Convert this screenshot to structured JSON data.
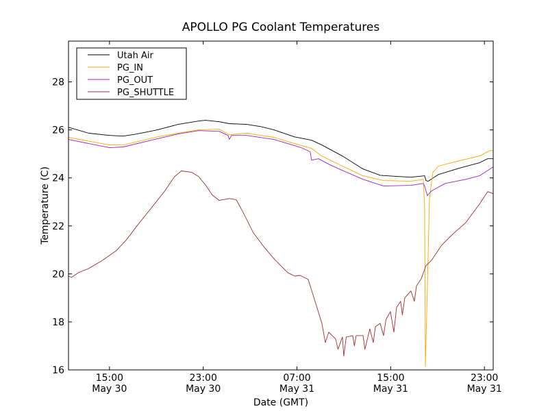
{
  "chart_data": {
    "type": "line",
    "title": "APOLLO PG Coolant Temperatures",
    "xlabel": "Date (GMT)",
    "ylabel": "Temperature (C)",
    "x_units": "hours since May 30 00:00 GMT",
    "xlim": [
      11.5,
      47.75
    ],
    "ylim": [
      16,
      29.7
    ],
    "yticks": [
      16,
      18,
      20,
      22,
      24,
      26,
      28
    ],
    "xticks": [
      {
        "x": 15,
        "time": "15:00",
        "date": "May 30"
      },
      {
        "x": 23,
        "time": "23:00",
        "date": "May 30"
      },
      {
        "x": 31,
        "time": "07:00",
        "date": "May 31"
      },
      {
        "x": 39,
        "time": "15:00",
        "date": "May 31"
      },
      {
        "x": 47,
        "time": "23:00",
        "date": "May 31"
      }
    ],
    "grid": false,
    "legend_position": "top-left",
    "series": [
      {
        "name": "Utah Air",
        "color": "#000000",
        "points": [
          [
            11.49,
            26.11
          ],
          [
            13.25,
            25.86
          ],
          [
            15,
            25.77
          ],
          [
            16.17,
            25.74
          ],
          [
            17.34,
            25.83
          ],
          [
            19.09,
            26.0
          ],
          [
            20.85,
            26.23
          ],
          [
            22.6,
            26.37
          ],
          [
            23.19,
            26.4
          ],
          [
            24.36,
            26.34
          ],
          [
            25.23,
            26.26
          ],
          [
            26.7,
            26.23
          ],
          [
            27.87,
            26.14
          ],
          [
            29.04,
            26.0
          ],
          [
            30.79,
            25.71
          ],
          [
            32.25,
            25.57
          ],
          [
            33.13,
            25.37
          ],
          [
            34.88,
            24.91
          ],
          [
            36.64,
            24.37
          ],
          [
            38.1,
            24.11
          ],
          [
            39.56,
            24.06
          ],
          [
            40.73,
            24.03
          ],
          [
            41.9,
            24.09
          ],
          [
            42.01,
            23.89
          ],
          [
            42.19,
            23.86
          ],
          [
            43.07,
            24.14
          ],
          [
            44.82,
            24.4
          ],
          [
            46.58,
            24.63
          ],
          [
            47.28,
            24.8
          ],
          [
            47.75,
            24.8
          ]
        ]
      },
      {
        "name": "PG_IN",
        "color": "#ffa500",
        "points": [
          [
            11.49,
            25.69
          ],
          [
            15,
            25.37
          ],
          [
            16.17,
            25.37
          ],
          [
            19.09,
            25.71
          ],
          [
            20.85,
            25.86
          ],
          [
            22.6,
            26.0
          ],
          [
            24.36,
            26.03
          ],
          [
            25.23,
            25.8
          ],
          [
            26.7,
            25.86
          ],
          [
            29.04,
            25.69
          ],
          [
            30.79,
            25.43
          ],
          [
            32.25,
            25.23
          ],
          [
            33.13,
            24.91
          ],
          [
            34.88,
            24.49
          ],
          [
            36.64,
            24.09
          ],
          [
            38.39,
            23.89
          ],
          [
            40.73,
            23.86
          ],
          [
            41.78,
            23.94
          ],
          [
            41.9,
            22.86
          ],
          [
            41.96,
            16.14
          ],
          [
            42.13,
            19.43
          ],
          [
            42.31,
            23.14
          ],
          [
            42.6,
            24.23
          ],
          [
            43.07,
            24.49
          ],
          [
            44.82,
            24.71
          ],
          [
            46.58,
            24.91
          ],
          [
            47.46,
            25.14
          ],
          [
            47.75,
            25.14
          ]
        ]
      },
      {
        "name": "PG_OUT",
        "color": "#a020c0",
        "points": [
          [
            11.49,
            25.6
          ],
          [
            15,
            25.26
          ],
          [
            16.17,
            25.29
          ],
          [
            19.09,
            25.63
          ],
          [
            20.85,
            25.83
          ],
          [
            22.6,
            25.97
          ],
          [
            24.36,
            25.94
          ],
          [
            25.12,
            25.77
          ],
          [
            25.23,
            25.6
          ],
          [
            25.41,
            25.77
          ],
          [
            26.7,
            25.77
          ],
          [
            29.04,
            25.6
          ],
          [
            31.37,
            25.26
          ],
          [
            32.13,
            25.09
          ],
          [
            32.25,
            24.74
          ],
          [
            32.84,
            24.8
          ],
          [
            33.71,
            24.57
          ],
          [
            34.88,
            24.31
          ],
          [
            36.64,
            23.94
          ],
          [
            38.39,
            23.66
          ],
          [
            40.73,
            23.69
          ],
          [
            41.78,
            23.77
          ],
          [
            41.9,
            23.66
          ],
          [
            42.13,
            23.26
          ],
          [
            42.49,
            23.46
          ],
          [
            43.65,
            23.77
          ],
          [
            45.41,
            23.94
          ],
          [
            46.58,
            24.09
          ],
          [
            47.75,
            24.46
          ]
        ]
      },
      {
        "name": "PG_SHUTTLE",
        "color": "#a52a2a",
        "points": [
          [
            11.49,
            19.91
          ],
          [
            11.78,
            19.86
          ],
          [
            12.37,
            20.06
          ],
          [
            13.25,
            20.23
          ],
          [
            14.42,
            20.57
          ],
          [
            15.58,
            20.97
          ],
          [
            16.46,
            21.43
          ],
          [
            17.34,
            22.0
          ],
          [
            18.51,
            22.71
          ],
          [
            19.68,
            23.43
          ],
          [
            20.56,
            24.06
          ],
          [
            21.14,
            24.29
          ],
          [
            22.02,
            24.23
          ],
          [
            22.6,
            24.06
          ],
          [
            23.19,
            23.71
          ],
          [
            23.77,
            23.29
          ],
          [
            24.36,
            23.06
          ],
          [
            25.23,
            23.14
          ],
          [
            25.82,
            23.09
          ],
          [
            26.4,
            22.57
          ],
          [
            27.28,
            21.71
          ],
          [
            28.16,
            21.14
          ],
          [
            29.04,
            20.63
          ],
          [
            30.2,
            20.06
          ],
          [
            30.79,
            19.91
          ],
          [
            31.26,
            19.94
          ],
          [
            31.96,
            19.77
          ],
          [
            32.54,
            18.86
          ],
          [
            33.13,
            17.94
          ],
          [
            33.42,
            17.14
          ],
          [
            33.71,
            17.57
          ],
          [
            34.3,
            17.29
          ],
          [
            34.5,
            16.86
          ],
          [
            34.88,
            17.37
          ],
          [
            35.0,
            16.57
          ],
          [
            35.2,
            17.37
          ],
          [
            35.76,
            17.43
          ],
          [
            35.9,
            17.0
          ],
          [
            36.05,
            17.43
          ],
          [
            36.64,
            17.43
          ],
          [
            36.8,
            16.86
          ],
          [
            37.22,
            17.71
          ],
          [
            37.51,
            17.14
          ],
          [
            37.7,
            17.8
          ],
          [
            38.1,
            17.94
          ],
          [
            38.39,
            17.43
          ],
          [
            38.6,
            18.1
          ],
          [
            38.98,
            18.43
          ],
          [
            39.27,
            17.57
          ],
          [
            39.5,
            18.6
          ],
          [
            39.85,
            18.86
          ],
          [
            40.0,
            18.29
          ],
          [
            40.2,
            19.0
          ],
          [
            40.73,
            19.29
          ],
          [
            41.02,
            18.86
          ],
          [
            41.2,
            19.5
          ],
          [
            41.61,
            19.8
          ],
          [
            42.01,
            20.34
          ],
          [
            42.49,
            20.57
          ],
          [
            43.36,
            21.2
          ],
          [
            44.24,
            21.63
          ],
          [
            45.41,
            22.14
          ],
          [
            46.58,
            22.91
          ],
          [
            47.28,
            23.43
          ],
          [
            47.75,
            23.34
          ]
        ]
      }
    ]
  }
}
